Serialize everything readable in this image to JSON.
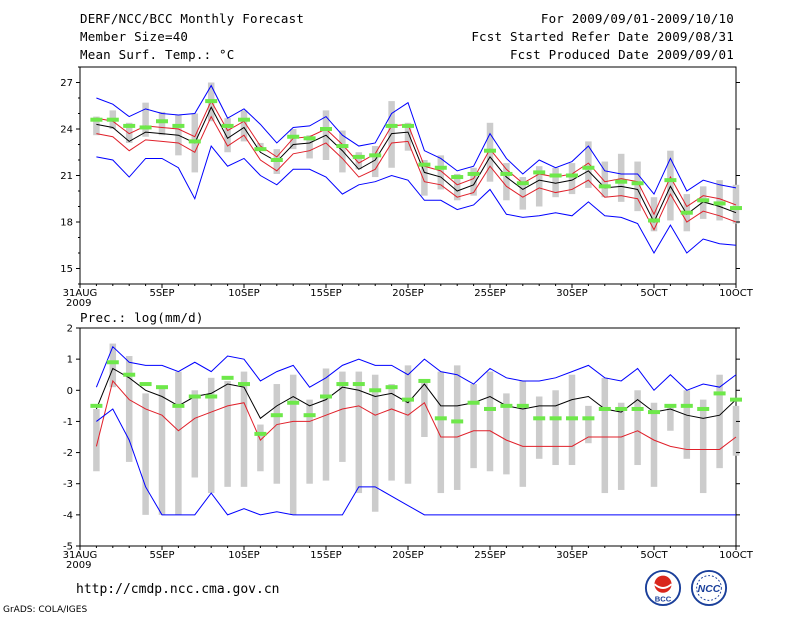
{
  "header": {
    "left_line1": "DERF/NCC/BCC Monthly Forecast",
    "left_line2": "Member Size=40",
    "left_line3": "Mean Surf. Temp.: °C",
    "right_line1": "For 2009/09/01-2009/10/10",
    "right_line2": "Fcst Started Refer Date 2009/08/31",
    "right_line3": "Fcst Produced Date 2009/09/01"
  },
  "x_axis": {
    "ticks": [
      {
        "day": 0,
        "label": "31AUG",
        "sub": "2009"
      },
      {
        "day": 5,
        "label": "5SEP"
      },
      {
        "day": 10,
        "label": "10SEP"
      },
      {
        "day": 15,
        "label": "15SEP"
      },
      {
        "day": 20,
        "label": "20SEP"
      },
      {
        "day": 25,
        "label": "25SEP"
      },
      {
        "day": 30,
        "label": "30SEP"
      },
      {
        "day": 35,
        "label": "5OCT"
      },
      {
        "day": 40,
        "label": "10OCT"
      }
    ]
  },
  "footer": {
    "url": "http://cmdp.ncc.cma.gov.cn",
    "credit": "GrADS: COLA/IGES",
    "logo1_text": "BCC",
    "logo2_text": "NCC"
  },
  "colors": {
    "bar": "#cccccc",
    "ensemble_mean": "#000000",
    "envelope": "#0000ff",
    "spread": "#e0202a",
    "observed": "#6ee84a"
  },
  "chart_data": [
    {
      "type": "line",
      "title": "Mean Surf. Temp.: °C",
      "xlabel": "",
      "ylabel": "",
      "ylim": [
        14,
        28
      ],
      "yticks": [
        15,
        18,
        21,
        24,
        27
      ],
      "x": [
        1,
        2,
        3,
        4,
        5,
        6,
        7,
        8,
        9,
        10,
        11,
        12,
        13,
        14,
        15,
        16,
        17,
        18,
        19,
        20,
        21,
        22,
        23,
        24,
        25,
        26,
        27,
        28,
        29,
        30,
        31,
        32,
        33,
        34,
        35,
        36,
        37,
        38,
        39,
        40
      ],
      "series": [
        {
          "name": "max",
          "values": [
            26.0,
            25.6,
            24.8,
            25.3,
            25.0,
            24.9,
            25.0,
            26.8,
            24.7,
            25.3,
            24.3,
            23.1,
            24.1,
            24.2,
            24.8,
            23.6,
            22.9,
            23.1,
            25.0,
            25.7,
            22.6,
            22.1,
            21.3,
            21.6,
            23.7,
            22.1,
            21.1,
            22.0,
            21.5,
            21.9,
            22.9,
            21.3,
            21.1,
            21.1,
            19.8,
            22.1,
            20.0,
            20.7,
            20.4,
            20.2
          ]
        },
        {
          "name": "mean_upper",
          "values": [
            24.7,
            24.5,
            23.7,
            24.2,
            24.1,
            24.0,
            23.5,
            25.8,
            23.9,
            24.5,
            22.9,
            22.2,
            23.4,
            23.5,
            24.0,
            23.0,
            21.8,
            22.4,
            24.2,
            24.3,
            21.6,
            21.3,
            20.4,
            20.8,
            22.7,
            21.4,
            20.5,
            21.1,
            20.9,
            21.1,
            21.8,
            20.6,
            20.8,
            20.6,
            18.5,
            20.9,
            19.0,
            19.7,
            19.5,
            19.1
          ]
        },
        {
          "name": "mean",
          "values": [
            24.3,
            24.1,
            23.2,
            23.8,
            23.7,
            23.6,
            23.1,
            25.4,
            23.4,
            24.1,
            22.5,
            21.9,
            23.0,
            23.1,
            23.6,
            22.6,
            21.4,
            22.0,
            23.7,
            23.8,
            21.2,
            20.9,
            20.0,
            20.4,
            22.2,
            20.9,
            20.1,
            20.7,
            20.5,
            20.7,
            21.3,
            20.2,
            20.3,
            20.1,
            18.0,
            20.3,
            18.5,
            19.3,
            19.0,
            18.6
          ]
        },
        {
          "name": "mean_lower",
          "values": [
            23.7,
            23.5,
            22.6,
            23.3,
            23.2,
            23.1,
            22.5,
            24.8,
            22.9,
            23.6,
            22.0,
            21.3,
            22.4,
            22.6,
            23.1,
            22.1,
            20.9,
            21.4,
            23.1,
            23.2,
            20.6,
            20.4,
            19.6,
            19.9,
            21.6,
            20.3,
            19.6,
            20.2,
            19.9,
            20.1,
            20.7,
            19.6,
            19.7,
            19.5,
            17.5,
            19.8,
            18.0,
            18.7,
            18.4,
            18.0
          ]
        },
        {
          "name": "min",
          "values": [
            22.2,
            22.0,
            20.9,
            22.1,
            22.1,
            21.5,
            19.5,
            22.9,
            21.6,
            22.1,
            21.0,
            20.4,
            21.4,
            21.4,
            20.9,
            19.8,
            20.4,
            20.6,
            21.0,
            20.7,
            19.4,
            19.4,
            18.8,
            19.1,
            20.1,
            18.5,
            18.3,
            18.4,
            18.6,
            18.4,
            19.3,
            18.4,
            18.3,
            17.9,
            16.0,
            17.8,
            16.0,
            16.9,
            16.6,
            16.5
          ]
        }
      ],
      "bars": {
        "low": [
          23.6,
          24.0,
          23.1,
          23.5,
          23.6,
          22.3,
          21.2,
          24.5,
          22.5,
          23.2,
          22.6,
          21.1,
          22.7,
          22.1,
          22.0,
          21.2,
          21.4,
          20.9,
          21.5,
          22.6,
          19.7,
          20.1,
          19.4,
          19.7,
          20.6,
          19.4,
          18.8,
          19.0,
          19.6,
          19.8,
          20.2,
          19.6,
          19.3,
          18.7,
          17.4,
          18.1,
          17.4,
          18.2,
          18.1,
          17.9
        ],
        "high": [
          24.8,
          25.2,
          24.4,
          25.7,
          25.1,
          24.9,
          25.0,
          27.0,
          24.7,
          25.2,
          23.1,
          22.7,
          24.0,
          23.6,
          25.2,
          23.9,
          22.5,
          22.9,
          25.8,
          24.4,
          22.0,
          22.3,
          21.1,
          21.5,
          24.4,
          21.8,
          20.9,
          21.6,
          21.5,
          21.8,
          23.2,
          21.9,
          22.4,
          21.9,
          19.6,
          22.6,
          19.8,
          20.3,
          20.7,
          20.4
        ]
      },
      "observed": [
        24.6,
        24.6,
        24.2,
        24.1,
        24.5,
        24.2,
        23.2,
        25.8,
        24.2,
        24.6,
        22.7,
        22.0,
        23.5,
        23.4,
        24.0,
        22.9,
        22.2,
        22.3,
        24.2,
        24.2,
        21.7,
        21.5,
        20.9,
        21.1,
        22.6,
        21.1,
        20.5,
        21.2,
        21.0,
        21.0,
        21.5,
        20.3,
        20.6,
        20.5,
        18.1,
        20.7,
        18.6,
        19.4,
        19.2,
        18.9
      ]
    },
    {
      "type": "line",
      "title": "Prec.: log(mm/d)",
      "xlabel": "",
      "ylabel": "",
      "ylim": [
        -5,
        2
      ],
      "yticks": [
        -5,
        -4,
        -3,
        -2,
        -1,
        0,
        1,
        2
      ],
      "x": [
        1,
        2,
        3,
        4,
        5,
        6,
        7,
        8,
        9,
        10,
        11,
        12,
        13,
        14,
        15,
        16,
        17,
        18,
        19,
        20,
        21,
        22,
        23,
        24,
        25,
        26,
        27,
        28,
        29,
        30,
        31,
        32,
        33,
        34,
        35,
        36,
        37,
        38,
        39,
        40
      ],
      "series": [
        {
          "name": "max",
          "values": [
            0.1,
            1.4,
            0.9,
            0.8,
            0.8,
            0.6,
            0.9,
            0.6,
            1.1,
            1.0,
            0.3,
            0.6,
            0.8,
            0.1,
            0.4,
            0.8,
            1.0,
            0.8,
            0.8,
            0.5,
            1.0,
            0.6,
            0.5,
            0.2,
            0.7,
            0.4,
            0.3,
            0.3,
            0.4,
            0.6,
            0.8,
            0.4,
            0.3,
            0.7,
            0.0,
            0.5,
            0.0,
            0.2,
            0.1,
            0.5
          ]
        },
        {
          "name": "mean",
          "values": [
            -0.6,
            0.7,
            0.4,
            0.0,
            -0.2,
            -0.5,
            -0.2,
            -0.1,
            0.2,
            0.1,
            -0.9,
            -0.5,
            -0.2,
            -0.5,
            -0.3,
            0.1,
            0.0,
            -0.2,
            -0.1,
            -0.4,
            0.2,
            -0.5,
            -0.5,
            -0.4,
            -0.2,
            -0.5,
            -0.6,
            -0.5,
            -0.5,
            -0.3,
            -0.2,
            -0.6,
            -0.7,
            -0.3,
            -0.7,
            -0.6,
            -0.8,
            -0.9,
            -0.8,
            -0.3
          ]
        },
        {
          "name": "spread",
          "values": [
            -1.8,
            0.3,
            -0.3,
            -0.6,
            -0.8,
            -1.3,
            -0.9,
            -0.7,
            -0.5,
            -0.4,
            -1.6,
            -1.1,
            -1.0,
            -1.0,
            -0.8,
            -0.6,
            -0.5,
            -0.8,
            -0.6,
            -0.8,
            -0.4,
            -1.5,
            -1.5,
            -1.3,
            -1.3,
            -1.6,
            -1.8,
            -1.8,
            -1.8,
            -1.8,
            -1.5,
            -1.5,
            -1.5,
            -1.3,
            -1.6,
            -1.8,
            -1.9,
            -1.9,
            -1.9,
            -1.5
          ]
        },
        {
          "name": "min",
          "values": [
            -1.0,
            -0.6,
            -1.6,
            -3.1,
            -4.0,
            -4.0,
            -4.0,
            -3.3,
            -4.0,
            -3.8,
            -4.0,
            -3.9,
            -4.0,
            -4.0,
            -4.0,
            -4.0,
            -3.1,
            -3.1,
            -3.4,
            -3.7,
            -4.0,
            -4.0,
            -4.0,
            -4.0,
            -4.0,
            -4.0,
            -4.0,
            -4.0,
            -4.0,
            -4.0,
            -4.0,
            -4.0,
            -4.0,
            -4.0,
            -4.0,
            -4.0,
            -4.0,
            -4.0,
            -4.0,
            -4.0
          ]
        }
      ],
      "bars": {
        "low": [
          -2.6,
          0.1,
          -2.3,
          -4.0,
          -4.0,
          -4.0,
          -2.8,
          -3.3,
          -3.1,
          -3.1,
          -2.6,
          -3.0,
          -4.0,
          -3.0,
          -2.9,
          -2.3,
          -3.3,
          -3.9,
          -2.9,
          -3.0,
          -1.5,
          -3.3,
          -3.2,
          -2.5,
          -2.6,
          -2.7,
          -3.1,
          -2.2,
          -2.4,
          -2.4,
          -1.7,
          -3.3,
          -3.2,
          -2.4,
          -3.1,
          -1.3,
          -2.2,
          -3.3,
          -2.5,
          -2.1
        ],
        "high": [
          -0.6,
          1.5,
          1.1,
          -0.1,
          0.1,
          0.6,
          0.0,
          0.4,
          0.3,
          0.6,
          -1.1,
          0.2,
          0.5,
          -0.3,
          0.7,
          0.6,
          0.6,
          0.5,
          0.2,
          0.8,
          0.3,
          0.6,
          0.8,
          0.2,
          0.6,
          -0.1,
          0.3,
          -0.2,
          0.0,
          0.5,
          -0.5,
          0.4,
          -0.4,
          0.0,
          -0.4,
          -0.5,
          0.0,
          -0.3,
          0.5,
          -0.5
        ]
      },
      "observed": [
        -0.5,
        0.9,
        0.5,
        0.2,
        0.1,
        -0.5,
        -0.2,
        -0.2,
        0.4,
        0.2,
        -1.4,
        -0.8,
        -0.4,
        -0.8,
        -0.2,
        0.2,
        0.2,
        0.0,
        0.1,
        -0.3,
        0.3,
        -0.9,
        -1.0,
        -0.4,
        -0.6,
        -0.5,
        -0.5,
        -0.9,
        -0.9,
        -0.9,
        -0.9,
        -0.6,
        -0.6,
        -0.6,
        -0.7,
        -0.5,
        -0.5,
        -0.6,
        -0.1,
        -0.3
      ]
    }
  ]
}
